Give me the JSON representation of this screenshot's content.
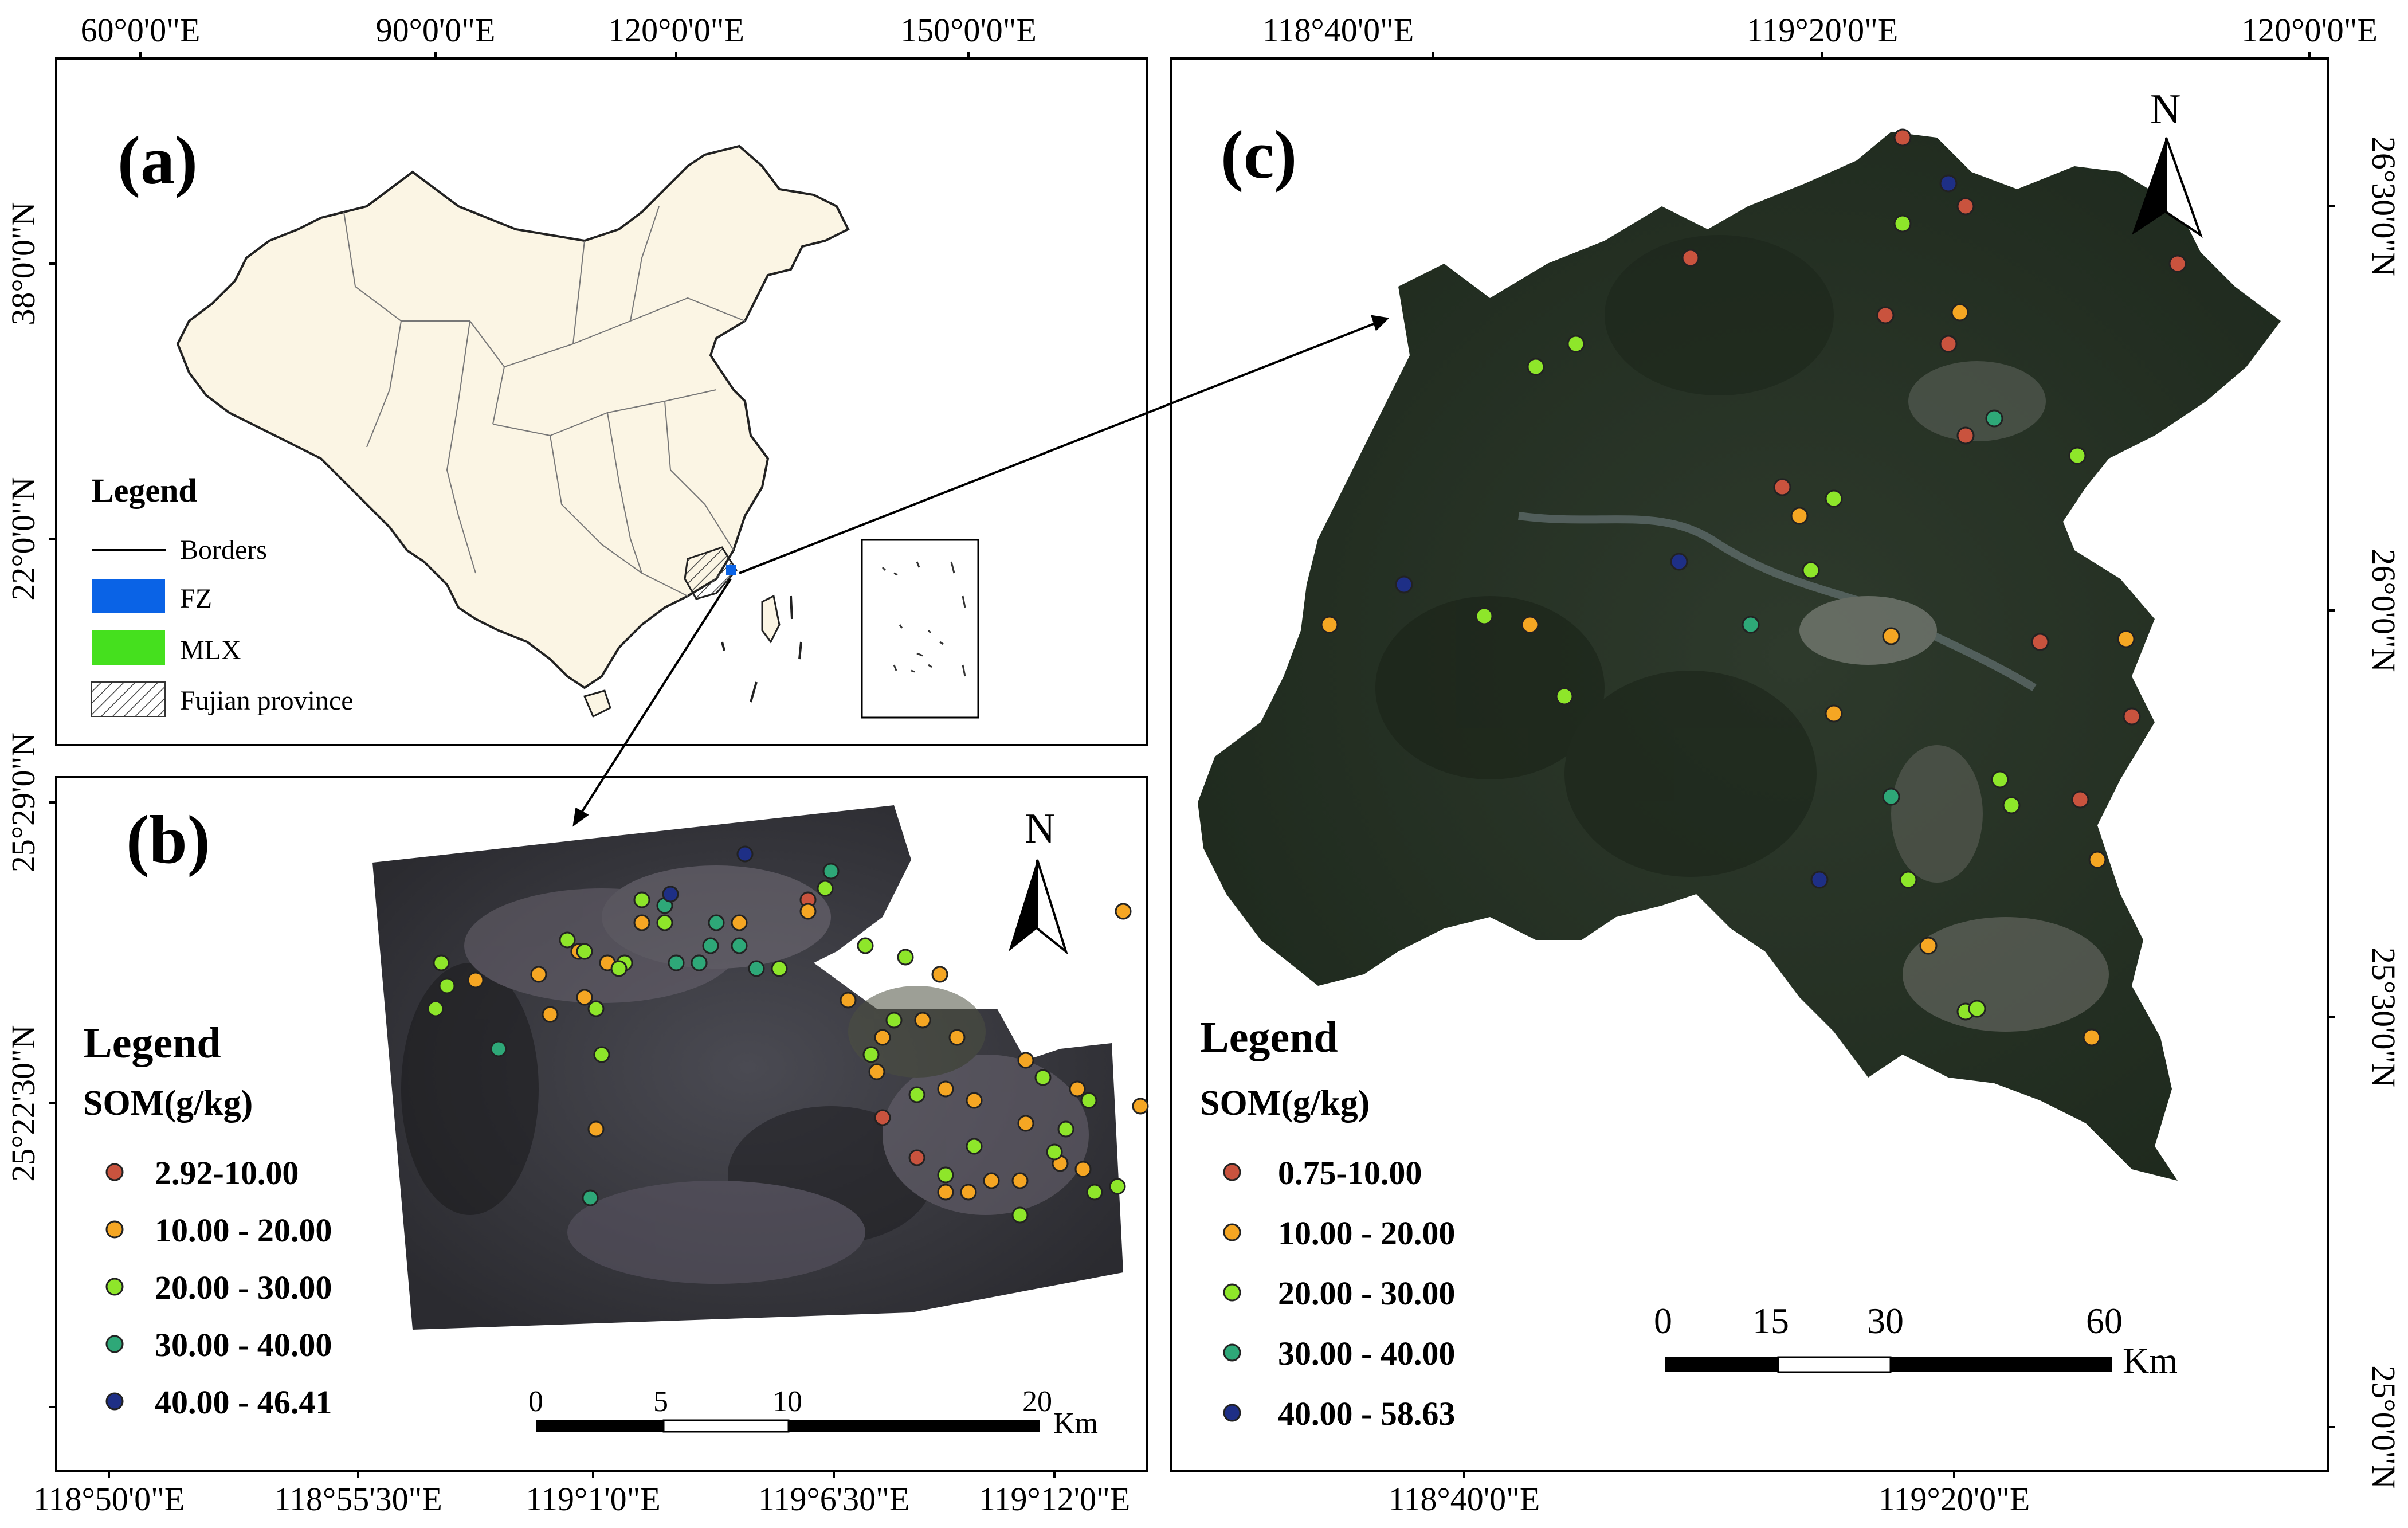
{
  "colors": {
    "class1": "#c9533e",
    "class2": "#f5a623",
    "class3": "#8ee62a",
    "class4": "#2ea878",
    "class5": "#1e2f86",
    "fz": "#0a63e6",
    "mlx": "#45e01e",
    "china_fill": "#fbf5e4"
  },
  "top_axis": [
    "60°0'0\"E",
    "90°0'0\"E",
    "120°0'0\"E",
    "150°0'0\"E",
    "118°40'0\"E",
    "119°20'0\"E",
    "120°0'0\"E"
  ],
  "bottom_axis": [
    "118°50'0\"E",
    "118°55'30\"E",
    "119°1'0\"E",
    "119°6'30\"E",
    "119°12'0\"E",
    "118°40'0\"E",
    "119°20'0\"E"
  ],
  "left_axis": [
    "38°0'0\"N",
    "22°0'0\"N",
    "25°29'0\"N",
    "25°22'30\"N"
  ],
  "right_axis": [
    "26°30'0\"N",
    "26°0'0\"N",
    "25°30'0\"N",
    "25°0'0\"N"
  ],
  "panel_a": {
    "label": "(a)",
    "legend_title": "Legend",
    "legend_items": [
      "Borders",
      "FZ",
      "MLX",
      "Fujian province"
    ]
  },
  "panel_b": {
    "label": "(b)",
    "north": "N",
    "legend_title": "Legend",
    "legend_subtitle": "SOM(g/kg)",
    "legend_items": [
      "2.92-10.00",
      "10.00 - 20.00",
      "20.00 - 30.00",
      "30.00 - 40.00",
      "40.00 - 46.41"
    ],
    "scale_labels": [
      "0",
      "5",
      "10",
      "20"
    ],
    "scale_unit": "Km"
  },
  "panel_c": {
    "label": "(c)",
    "north": "N",
    "legend_title": "Legend",
    "legend_subtitle": "SOM(g/kg)",
    "legend_items": [
      "0.75-10.00",
      "10.00 - 20.00",
      "20.00 - 30.00",
      "30.00 - 40.00",
      "40.00 - 58.63"
    ],
    "scale_labels": [
      "0",
      "15",
      "30",
      "60"
    ],
    "scale_unit": "Km"
  },
  "points_b": [
    [
      1,
      1410,
      1570
    ],
    [
      1,
      1540,
      1950
    ],
    [
      1,
      1600,
      2020
    ],
    [
      2,
      1410,
      1590
    ],
    [
      2,
      1960,
      1590
    ],
    [
      2,
      1640,
      1700
    ],
    [
      2,
      1610,
      1780
    ],
    [
      2,
      1670,
      1810
    ],
    [
      2,
      1540,
      1810
    ],
    [
      2,
      1480,
      1745
    ],
    [
      2,
      1530,
      1870
    ],
    [
      2,
      1650,
      1900
    ],
    [
      2,
      1700,
      1920
    ],
    [
      2,
      1790,
      1850
    ],
    [
      2,
      1880,
      1900
    ],
    [
      2,
      1990,
      1930
    ],
    [
      2,
      1890,
      2040
    ],
    [
      2,
      1850,
      2030
    ],
    [
      2,
      1780,
      2060
    ],
    [
      2,
      1730,
      2060
    ],
    [
      2,
      1690,
      2080
    ],
    [
      2,
      1650,
      2080
    ],
    [
      2,
      1060,
      1680
    ],
    [
      2,
      1010,
      1660
    ],
    [
      2,
      940,
      1700
    ],
    [
      2,
      960,
      1770
    ],
    [
      2,
      1020,
      1740
    ],
    [
      2,
      1040,
      1970
    ],
    [
      2,
      1120,
      1610
    ],
    [
      2,
      1290,
      1610
    ],
    [
      2,
      830,
      1710
    ],
    [
      2,
      1790,
      1960
    ],
    [
      3,
      770,
      1680
    ],
    [
      3,
      760,
      1760
    ],
    [
      3,
      780,
      1720
    ],
    [
      3,
      990,
      1640
    ],
    [
      3,
      1020,
      1660
    ],
    [
      3,
      1090,
      1680
    ],
    [
      3,
      1080,
      1690
    ],
    [
      3,
      1220,
      1680
    ],
    [
      3,
      1160,
      1610
    ],
    [
      3,
      1120,
      1570
    ],
    [
      3,
      1360,
      1690
    ],
    [
      3,
      1440,
      1550
    ],
    [
      3,
      1510,
      1650
    ],
    [
      3,
      1580,
      1670
    ],
    [
      3,
      1560,
      1780
    ],
    [
      3,
      1520,
      1840
    ],
    [
      3,
      1600,
      1910
    ],
    [
      3,
      1700,
      2000
    ],
    [
      3,
      1780,
      2120
    ],
    [
      3,
      1820,
      1880
    ],
    [
      3,
      1860,
      1970
    ],
    [
      3,
      1900,
      1920
    ],
    [
      3,
      1840,
      2010
    ],
    [
      3,
      1910,
      2080
    ],
    [
      3,
      1950,
      2070
    ],
    [
      3,
      1040,
      1760
    ],
    [
      3,
      1050,
      1840
    ],
    [
      3,
      1650,
      2050
    ],
    [
      4,
      1160,
      1580
    ],
    [
      4,
      1180,
      1680
    ],
    [
      4,
      1240,
      1650
    ],
    [
      4,
      1290,
      1650
    ],
    [
      4,
      1320,
      1690
    ],
    [
      4,
      1250,
      1610
    ],
    [
      4,
      1450,
      1520
    ],
    [
      4,
      870,
      1830
    ],
    [
      4,
      1030,
      2090
    ],
    [
      4,
      1220,
      1680
    ],
    [
      5,
      1170,
      1560
    ],
    [
      5,
      1300,
      1490
    ]
  ],
  "points_c": [
    [
      1,
      3320,
      240
    ],
    [
      1,
      2950,
      450
    ],
    [
      1,
      3290,
      550
    ],
    [
      1,
      3400,
      600
    ],
    [
      1,
      3430,
      360
    ],
    [
      1,
      3800,
      460
    ],
    [
      1,
      3110,
      850
    ],
    [
      1,
      3430,
      760
    ],
    [
      1,
      3560,
      1120
    ],
    [
      1,
      3720,
      1250
    ],
    [
      1,
      3630,
      1395
    ],
    [
      2,
      3420,
      545
    ],
    [
      2,
      3140,
      900
    ],
    [
      2,
      3300,
      1110
    ],
    [
      2,
      3200,
      1245
    ],
    [
      2,
      2320,
      1090
    ],
    [
      2,
      2670,
      1090
    ],
    [
      2,
      3365,
      1650
    ],
    [
      2,
      3660,
      1500
    ],
    [
      2,
      3710,
      1115
    ],
    [
      2,
      3650,
      1810
    ],
    [
      3,
      3320,
      390
    ],
    [
      3,
      2680,
      640
    ],
    [
      3,
      2750,
      600
    ],
    [
      3,
      3625,
      795
    ],
    [
      3,
      3200,
      870
    ],
    [
      3,
      3160,
      995
    ],
    [
      3,
      2590,
      1075
    ],
    [
      3,
      2730,
      1215
    ],
    [
      3,
      3330,
      1535
    ],
    [
      3,
      3490,
      1360
    ],
    [
      3,
      3510,
      1405
    ],
    [
      3,
      3430,
      1765
    ],
    [
      3,
      3450,
      1760
    ],
    [
      4,
      3480,
      730
    ],
    [
      4,
      3055,
      1090
    ],
    [
      4,
      3300,
      1390
    ],
    [
      5,
      3400,
      320
    ],
    [
      5,
      2930,
      980
    ],
    [
      5,
      2450,
      1020
    ],
    [
      5,
      3175,
      1535
    ]
  ]
}
